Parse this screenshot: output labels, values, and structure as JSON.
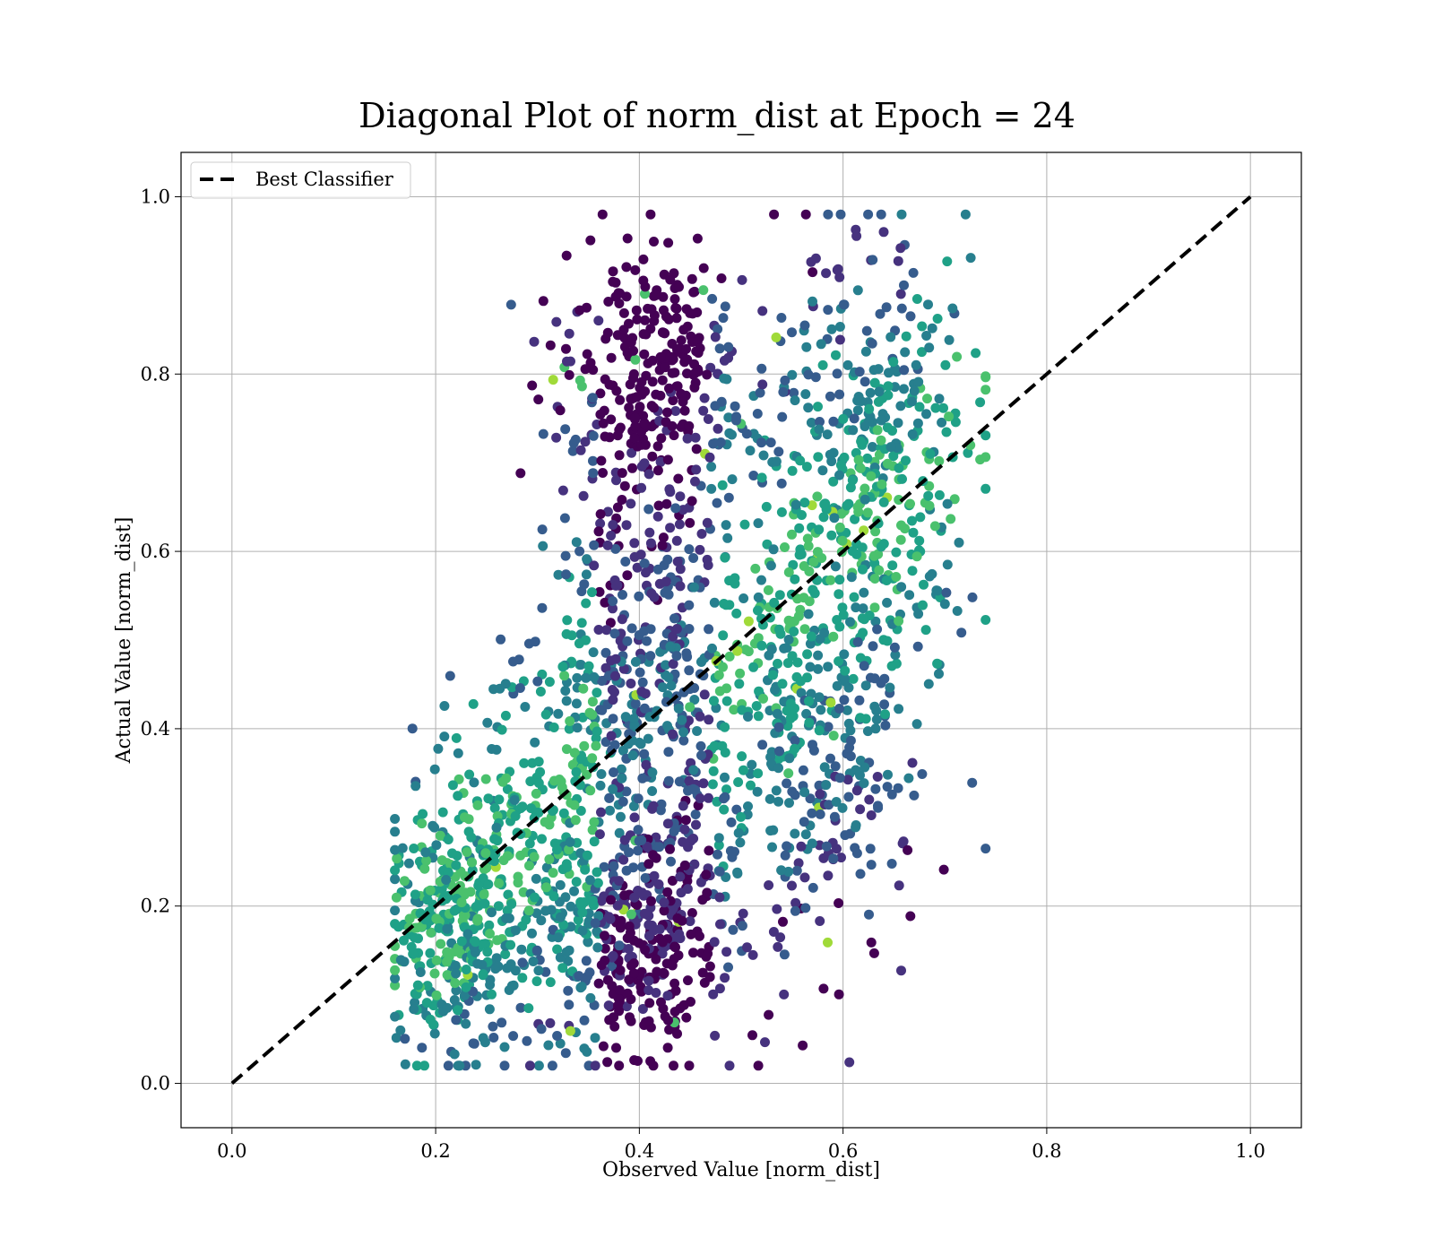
{
  "chart_data": {
    "type": "scatter",
    "title": "Diagonal Plot of norm_dist at Epoch = 24",
    "xlabel": "Observed Value [norm_dist]",
    "ylabel": "Actual Value [norm_dist]",
    "xlim": [
      -0.05,
      1.05
    ],
    "ylim": [
      -0.05,
      1.05
    ],
    "xticks": [
      "0.0",
      "0.2",
      "0.4",
      "0.6",
      "0.8",
      "1.0"
    ],
    "yticks": [
      "0.0",
      "0.2",
      "0.4",
      "0.6",
      "0.8",
      "1.0"
    ],
    "xtick_values": [
      0.0,
      0.2,
      0.4,
      0.6,
      0.8,
      1.0
    ],
    "ytick_values": [
      0.0,
      0.2,
      0.4,
      0.6,
      0.8,
      1.0
    ],
    "grid": true,
    "legend": {
      "position": "top-left",
      "entries": [
        "Best Classifier"
      ]
    },
    "reference_line": {
      "name": "Best Classifier",
      "x": [
        0.0,
        1.0
      ],
      "y": [
        0.0,
        1.0
      ],
      "style": "dashed",
      "color": "#000000"
    },
    "colormap": "viridis",
    "colors": [
      "#440154",
      "#46327e",
      "#365c8d",
      "#277f8e",
      "#1fa187",
      "#4ac16d",
      "#a0da39"
    ],
    "scatter": {
      "x_range": [
        0.16,
        0.74
      ],
      "y_range": [
        0.02,
        0.98
      ],
      "clusters": [
        {
          "x": 0.22,
          "y": 0.17,
          "sx": 0.035,
          "sy": 0.075,
          "weight": 0.13
        },
        {
          "x": 0.3,
          "y": 0.28,
          "sx": 0.05,
          "sy": 0.09,
          "weight": 0.12
        },
        {
          "x": 0.4,
          "y": 0.17,
          "sx": 0.05,
          "sy": 0.07,
          "weight": 0.14
        },
        {
          "x": 0.41,
          "y": 0.48,
          "sx": 0.05,
          "sy": 0.13,
          "weight": 0.17
        },
        {
          "x": 0.42,
          "y": 0.8,
          "sx": 0.05,
          "sy": 0.07,
          "weight": 0.11
        },
        {
          "x": 0.56,
          "y": 0.4,
          "sx": 0.06,
          "sy": 0.13,
          "weight": 0.16
        },
        {
          "x": 0.63,
          "y": 0.7,
          "sx": 0.05,
          "sy": 0.13,
          "weight": 0.17
        }
      ]
    }
  }
}
